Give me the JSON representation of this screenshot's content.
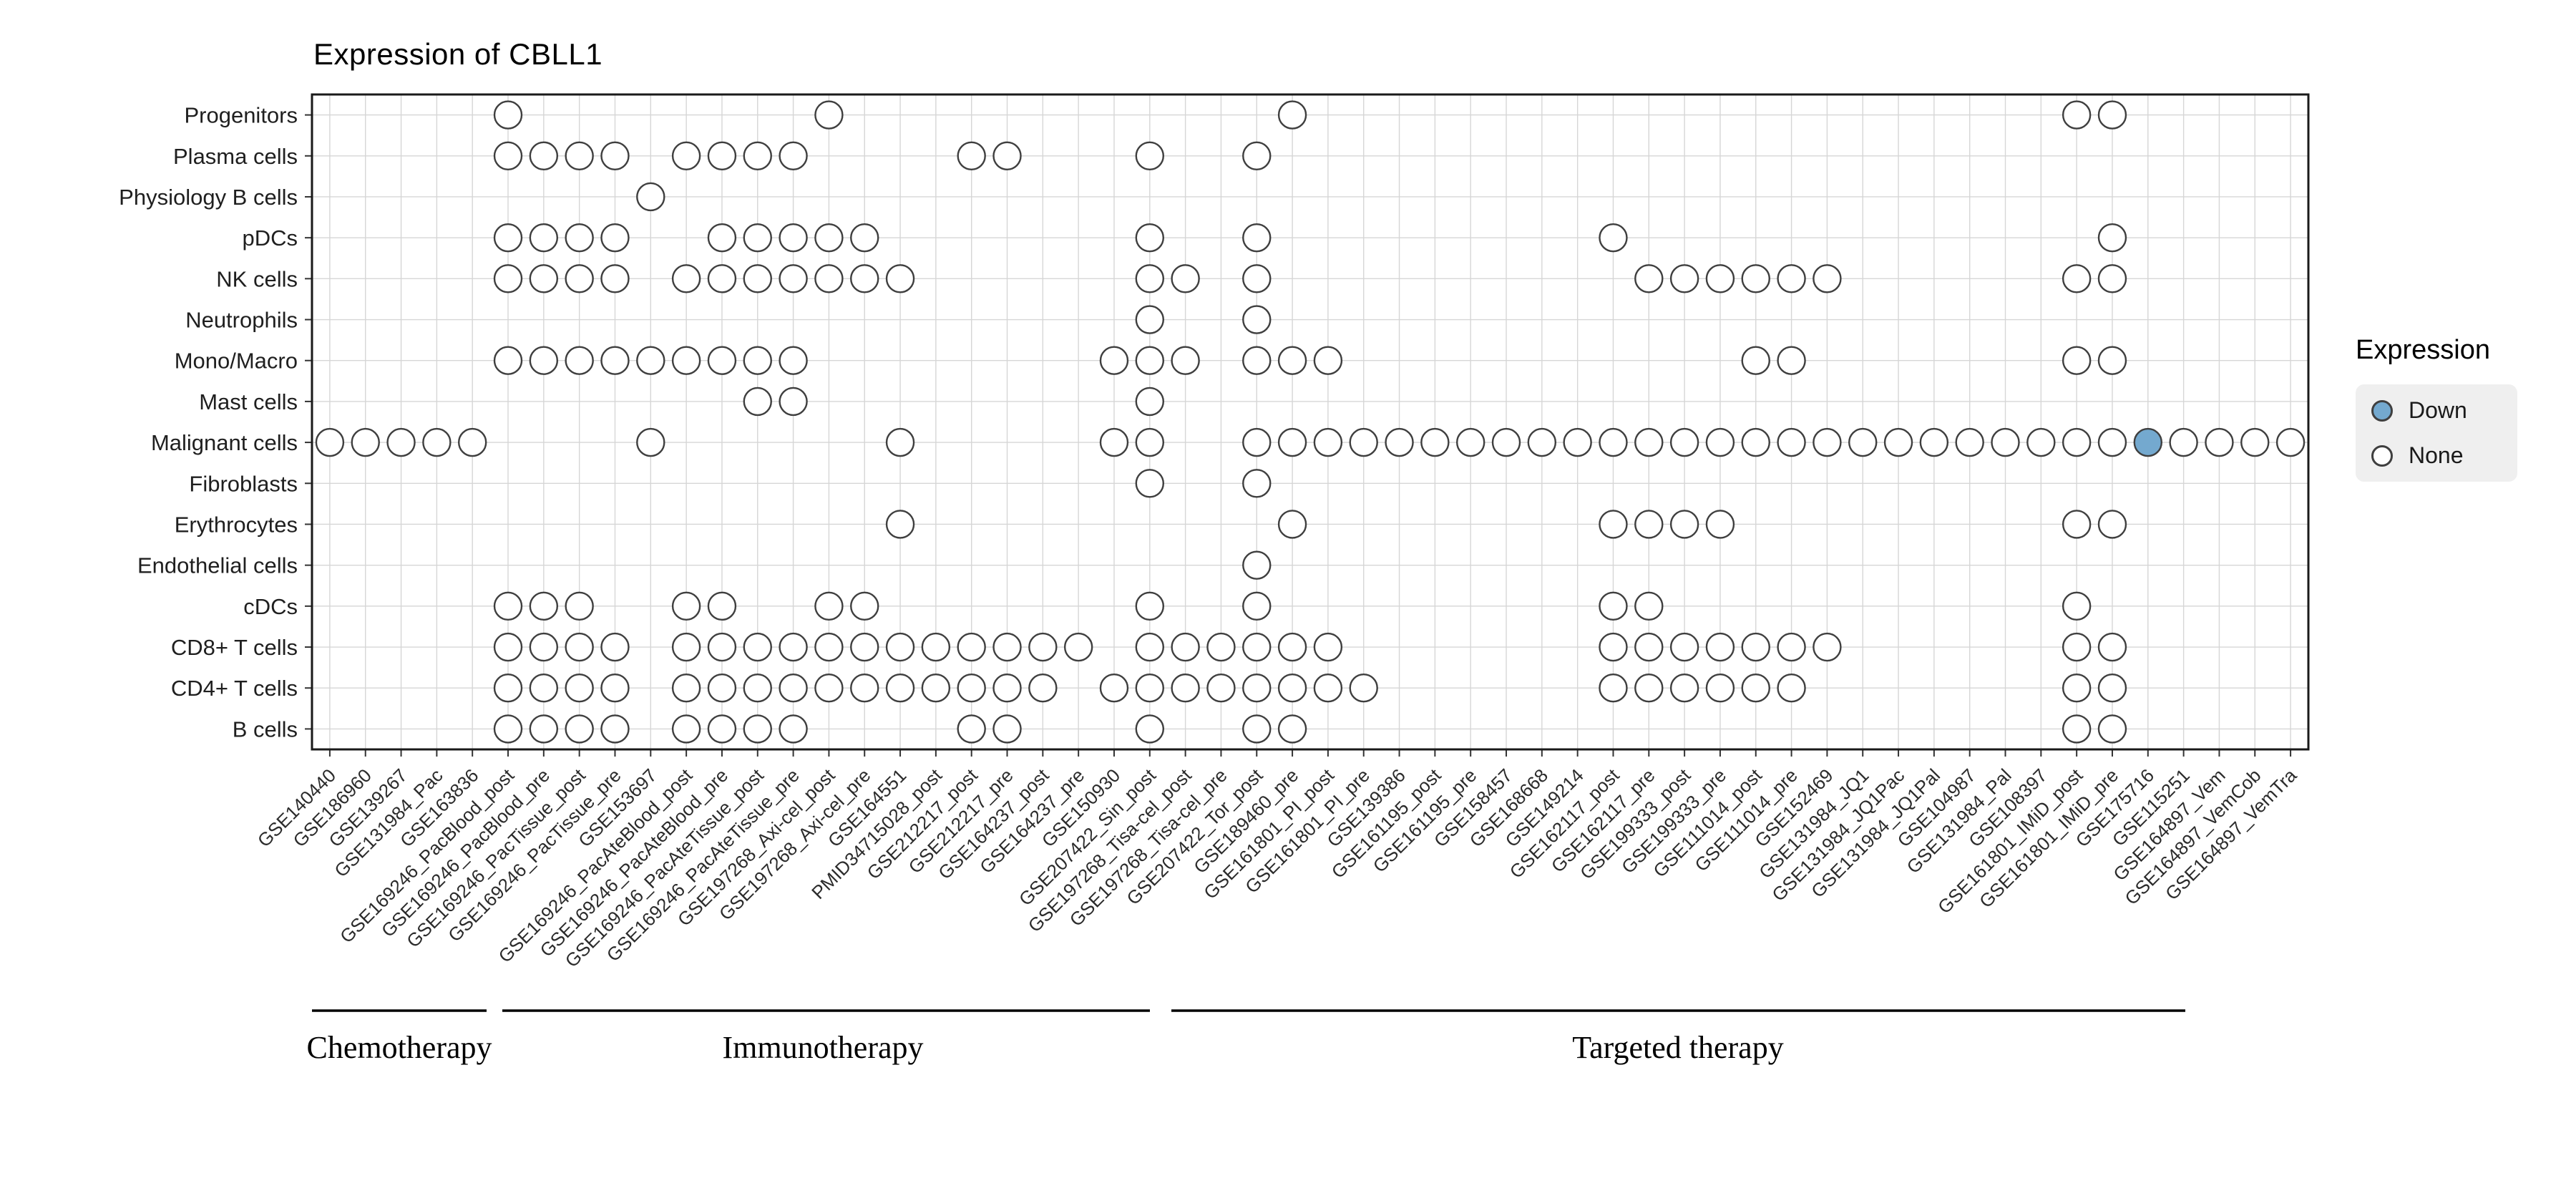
{
  "chart_data": {
    "type": "scatter",
    "title": "Expression of CBLL1",
    "rows": [
      "Progenitors",
      "Plasma cells",
      "Physiology B cells",
      "pDCs",
      "NK cells",
      "Neutrophils",
      "Mono/Macro",
      "Mast cells",
      "Malignant cells",
      "Fibroblasts",
      "Erythrocytes",
      "Endothelial cells",
      "cDCs",
      "CD8+ T cells",
      "CD4+ T cells",
      "B cells"
    ],
    "columns": [
      "GSE140440",
      "GSE186960",
      "GSE139267",
      "GSE131984_Pac",
      "GSE163836",
      "GSE169246_PacBlood_post",
      "GSE169246_PacBlood_pre",
      "GSE169246_PacTissue_post",
      "GSE169246_PacTissue_pre",
      "GSE153697",
      "GSE169246_PacAteBlood_post",
      "GSE169246_PacAteBlood_pre",
      "GSE169246_PacAteTissue_post",
      "GSE169246_PacAteTissue_pre",
      "GSE197268_Axi-cel_post",
      "GSE197268_Axi-cel_pre",
      "GSE164551",
      "PMID34715028_post",
      "GSE212217_post",
      "GSE212217_pre",
      "GSE164237_post",
      "GSE164237_pre",
      "GSE150930",
      "GSE207422_Sin_post",
      "GSE197268_Tisa-cel_post",
      "GSE197268_Tisa-cel_pre",
      "GSE207422_Tor_post",
      "GSE189460_pre",
      "GSE161801_PI_post",
      "GSE161801_PI_pre",
      "GSE139386",
      "GSE161195_post",
      "GSE161195_pre",
      "GSE158457",
      "GSE168668",
      "GSE149214",
      "GSE162117_post",
      "GSE162117_pre",
      "GSE199333_post",
      "GSE199333_pre",
      "GSE111014_post",
      "GSE111014_pre",
      "GSE152469",
      "GSE131984_JQ1",
      "GSE131984_JQ1Pac",
      "GSE131984_JQ1Pal",
      "GSE104987",
      "GSE131984_Pal",
      "GSE108397",
      "GSE161801_IMiD_post",
      "GSE161801_IMiD_pre",
      "GSE175716",
      "GSE115251",
      "GSE164897_Vem",
      "GSE164897_VemCob",
      "GSE164897_VemTra"
    ],
    "groups": [
      {
        "label": "Chemotherapy",
        "col_start": 0,
        "col_end": 4
      },
      {
        "label": "Immunotherapy",
        "col_start": 5,
        "col_end": 25
      },
      {
        "label": "Targeted therapy",
        "col_start": 26,
        "col_end": 55
      }
    ],
    "legend": {
      "title": "Expression",
      "items": [
        {
          "label": "Down",
          "color": "#74a9cf"
        },
        {
          "label": "None",
          "color": "#ffffff"
        }
      ]
    },
    "dot_outline": "#3f3f3f",
    "grid_color": "#d6d6d6",
    "presence": {
      "Progenitors": [
        5,
        14,
        27,
        49,
        50
      ],
      "Plasma cells": [
        5,
        6,
        7,
        8,
        10,
        11,
        12,
        13,
        18,
        19,
        23,
        26
      ],
      "Physiology B cells": [
        9
      ],
      "pDCs": [
        5,
        6,
        7,
        8,
        11,
        12,
        13,
        14,
        15,
        23,
        26,
        36,
        50
      ],
      "NK cells": [
        5,
        6,
        7,
        8,
        10,
        11,
        12,
        13,
        14,
        15,
        16,
        23,
        24,
        26,
        37,
        38,
        39,
        40,
        41,
        42,
        49,
        50
      ],
      "Neutrophils": [
        23,
        26
      ],
      "Mono/Macro": [
        5,
        6,
        7,
        8,
        9,
        10,
        11,
        12,
        13,
        22,
        23,
        24,
        26,
        27,
        28,
        40,
        41,
        49,
        50
      ],
      "Mast cells": [
        12,
        13,
        23
      ],
      "Malignant cells": [
        0,
        1,
        2,
        3,
        4,
        9,
        16,
        22,
        23,
        26,
        27,
        28,
        29,
        30,
        31,
        32,
        33,
        34,
        35,
        36,
        37,
        38,
        39,
        40,
        41,
        42,
        43,
        44,
        45,
        46,
        47,
        48,
        49,
        50,
        51,
        52,
        53,
        54,
        55
      ],
      "Fibroblasts": [
        23,
        26
      ],
      "Erythrocytes": [
        16,
        27,
        36,
        37,
        38,
        39,
        49,
        50
      ],
      "Endothelial cells": [
        26
      ],
      "cDCs": [
        5,
        6,
        7,
        10,
        11,
        14,
        15,
        23,
        26,
        36,
        37,
        49
      ],
      "CD8+ T cells": [
        5,
        6,
        7,
        8,
        10,
        11,
        12,
        13,
        14,
        15,
        16,
        17,
        18,
        19,
        20,
        21,
        23,
        24,
        25,
        26,
        27,
        28,
        36,
        37,
        38,
        39,
        40,
        41,
        42,
        49,
        50
      ],
      "CD4+ T cells": [
        5,
        6,
        7,
        8,
        10,
        11,
        12,
        13,
        14,
        15,
        16,
        17,
        18,
        19,
        20,
        22,
        23,
        24,
        25,
        26,
        27,
        28,
        29,
        36,
        37,
        38,
        39,
        40,
        41,
        49,
        50
      ],
      "B cells": [
        5,
        6,
        7,
        8,
        10,
        11,
        12,
        13,
        18,
        19,
        23,
        26,
        27,
        49,
        50
      ]
    },
    "down": [
      {
        "row": "Malignant cells",
        "col": 51
      }
    ]
  }
}
